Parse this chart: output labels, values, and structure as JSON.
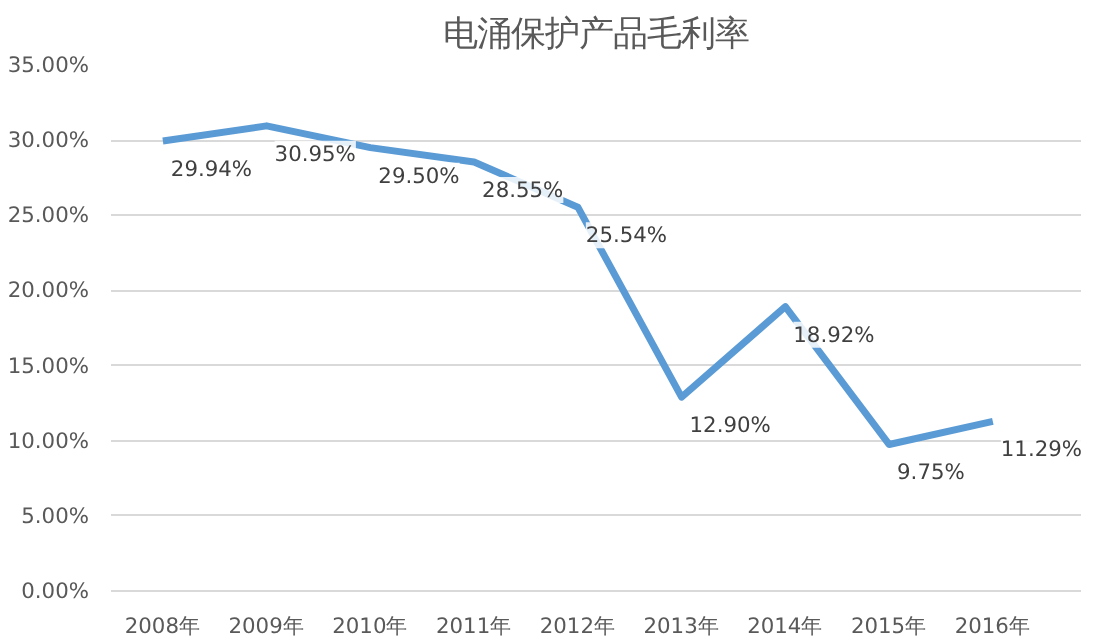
{
  "chart_data": {
    "type": "line",
    "title": "电涌保护产品毛利率",
    "categories": [
      "2008年",
      "2009年",
      "2010年",
      "2011年",
      "2012年",
      "2013年",
      "2014年",
      "2015年",
      "2016年"
    ],
    "series": [
      {
        "color": "#5b9bd5",
        "values": [
          29.94,
          30.95,
          29.5,
          28.55,
          25.54,
          12.9,
          18.92,
          9.75,
          11.29
        ],
        "value_labels": [
          "29.94%",
          "30.95%",
          "29.50%",
          "28.55%",
          "25.54%",
          "12.90%",
          "18.92%",
          "9.75%",
          "11.29%"
        ]
      }
    ],
    "ylim": [
      0,
      35
    ],
    "yticks": [
      {
        "value": 0,
        "label": "0.00%"
      },
      {
        "value": 5,
        "label": "5.00%"
      },
      {
        "value": 10,
        "label": "10.00%"
      },
      {
        "value": 15,
        "label": "15.00%"
      },
      {
        "value": 20,
        "label": "20.00%"
      },
      {
        "value": 25,
        "label": "25.00%"
      },
      {
        "value": 30,
        "label": "30.00%"
      },
      {
        "value": 35,
        "label": "35.00%"
      }
    ],
    "grid": "y",
    "marker": "none",
    "line_style": "solid"
  }
}
